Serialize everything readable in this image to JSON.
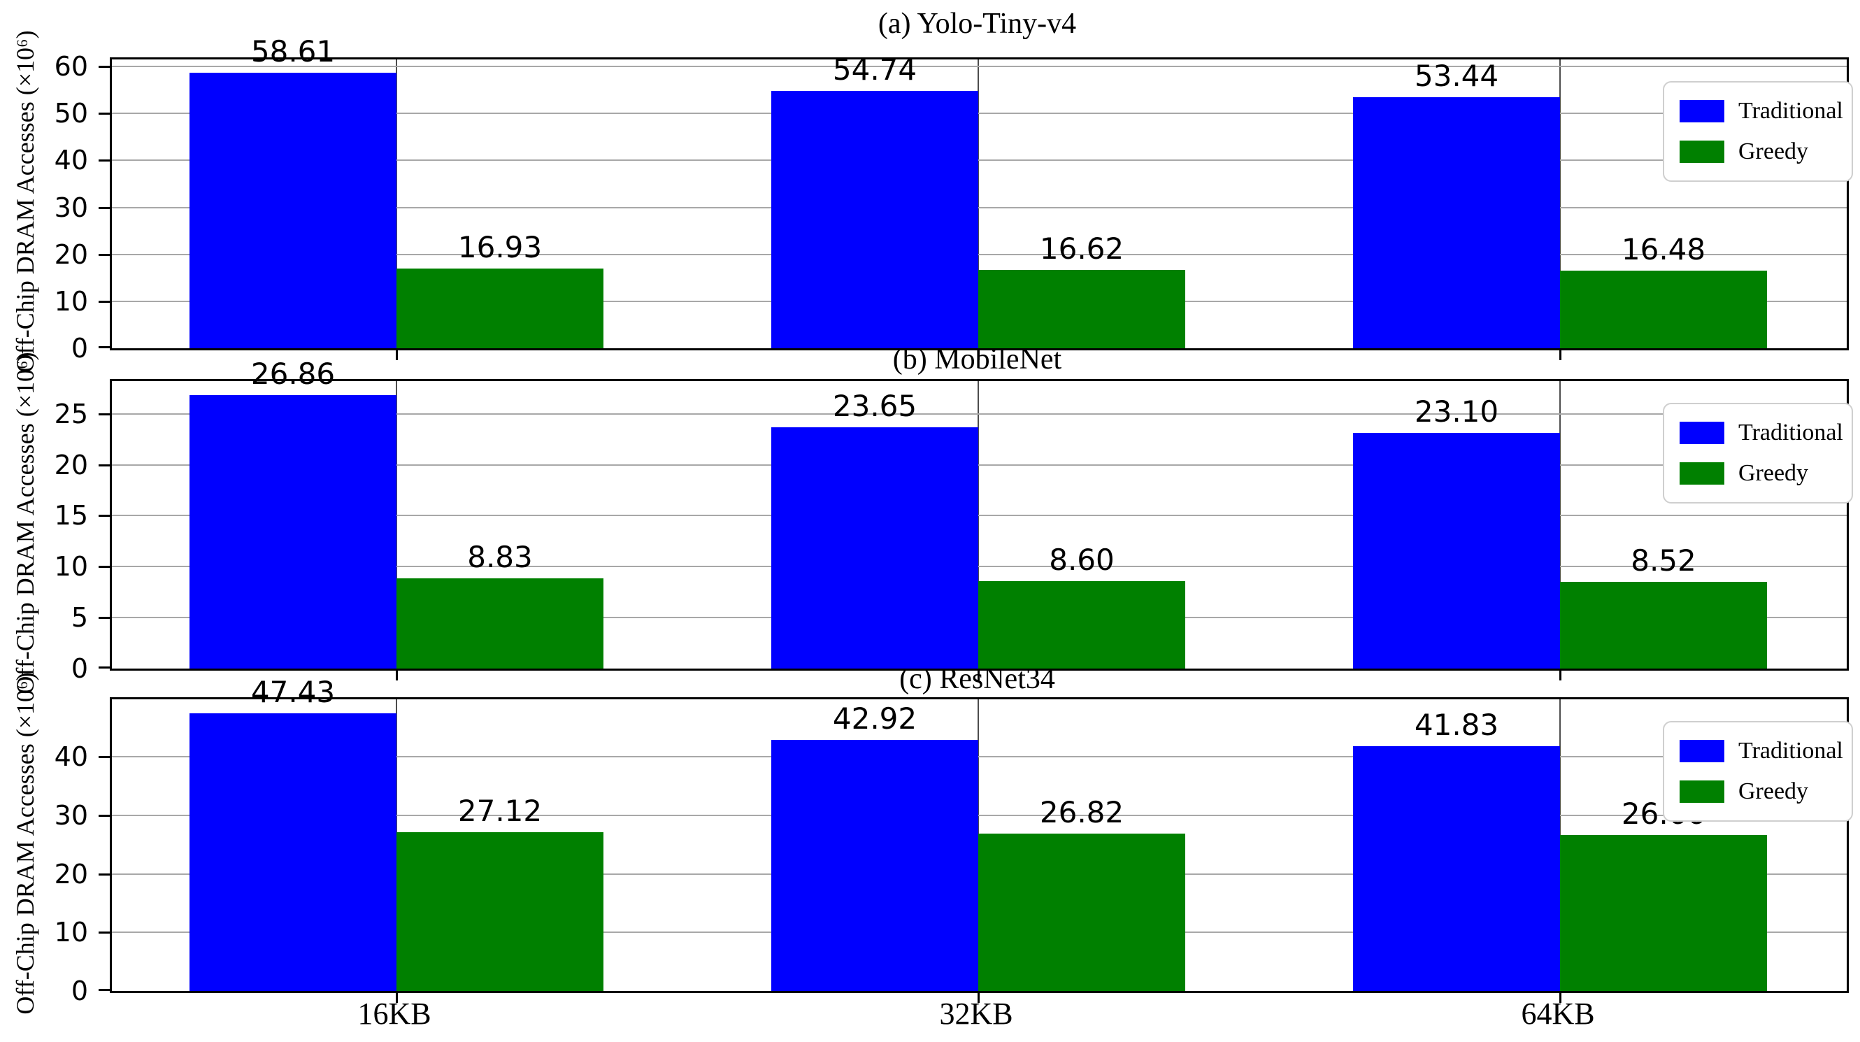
{
  "figure": {
    "background": "#ffffff"
  },
  "colors": {
    "traditional": "#0000ff",
    "greedy": "#008000",
    "axis": "#000000",
    "grid_horizontal": "#a8a8a8",
    "grid_vertical": "#4d4d4d"
  },
  "legend": {
    "position": "upper right",
    "items": [
      {
        "label": "Traditional",
        "color": "#0000ff"
      },
      {
        "label": "Greedy",
        "color": "#008000"
      }
    ]
  },
  "chart_data": [
    {
      "type": "bar",
      "title": "(a) Yolo-Tiny-v4",
      "ylabel": "Off-Chip DRAM Accesses (×10⁶)",
      "categories": [
        "16KB",
        "32KB",
        "64KB"
      ],
      "series": [
        {
          "name": "Traditional",
          "color": "#0000ff",
          "values": [
            58.61,
            54.74,
            53.44
          ]
        },
        {
          "name": "Greedy",
          "color": "#008000",
          "values": [
            16.93,
            16.62,
            16.48
          ]
        }
      ],
      "ylim": [
        0,
        61.5
      ],
      "yticks": [
        0,
        10,
        20,
        30,
        40,
        50,
        60
      ],
      "grid": true,
      "legend_position": "upper right",
      "show_x_tick_labels": false
    },
    {
      "type": "bar",
      "title": "(b) MobileNet",
      "ylabel": "Off-Chip DRAM Accesses (×10⁶)",
      "categories": [
        "16KB",
        "32KB",
        "64KB"
      ],
      "series": [
        {
          "name": "Traditional",
          "color": "#0000ff",
          "values": [
            26.86,
            23.65,
            23.1
          ]
        },
        {
          "name": "Greedy",
          "color": "#008000",
          "values": [
            8.83,
            8.6,
            8.52
          ]
        }
      ],
      "ylim": [
        0,
        28.2
      ],
      "yticks": [
        0,
        5,
        10,
        15,
        20,
        25
      ],
      "grid": true,
      "legend_position": "upper right",
      "show_x_tick_labels": false
    },
    {
      "type": "bar",
      "title": "(c) ResNet34",
      "ylabel": "Off-Chip DRAM Accesses (×10⁶)",
      "categories": [
        "16KB",
        "32KB",
        "64KB"
      ],
      "series": [
        {
          "name": "Traditional",
          "color": "#0000ff",
          "values": [
            47.43,
            42.92,
            41.83
          ]
        },
        {
          "name": "Greedy",
          "color": "#008000",
          "values": [
            27.12,
            26.82,
            26.66
          ]
        }
      ],
      "ylim": [
        0,
        49.8
      ],
      "yticks": [
        0,
        10,
        20,
        30,
        40
      ],
      "grid": true,
      "legend_position": "upper right",
      "show_x_tick_labels": true
    }
  ]
}
